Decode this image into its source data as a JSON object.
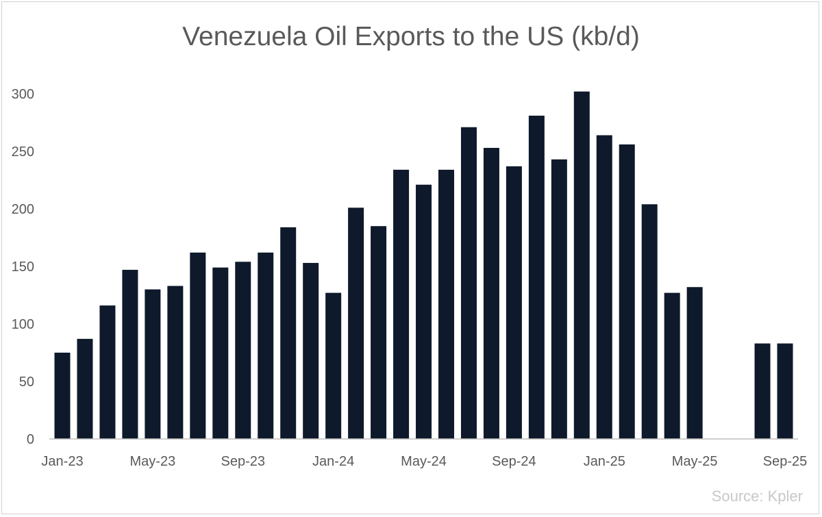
{
  "chart_data": {
    "type": "bar",
    "title": "Venezuela Oil Exports to the US (kb/d)",
    "source": "Source: Kpler",
    "categories": [
      "Jan-23",
      "Feb-23",
      "Mar-23",
      "Apr-23",
      "May-23",
      "Jun-23",
      "Jul-23",
      "Aug-23",
      "Sep-23",
      "Oct-23",
      "Nov-23",
      "Dec-23",
      "Jan-24",
      "Feb-24",
      "Mar-24",
      "Apr-24",
      "May-24",
      "Jun-24",
      "Jul-24",
      "Aug-24",
      "Sep-24",
      "Oct-24",
      "Nov-24",
      "Dec-24",
      "Jan-25",
      "Feb-25",
      "Mar-25",
      "Apr-25",
      "May-25",
      "Jun-25",
      "Jul-25",
      "Aug-25",
      "Sep-25"
    ],
    "values": [
      75,
      87,
      116,
      147,
      130,
      133,
      162,
      149,
      154,
      162,
      184,
      153,
      127,
      201,
      185,
      234,
      221,
      234,
      271,
      253,
      237,
      281,
      243,
      302,
      264,
      256,
      204,
      127,
      132,
      null,
      null,
      83,
      83
    ],
    "x_tick_labels": [
      "Jan-23",
      "May-23",
      "Sep-23",
      "Jan-24",
      "May-24",
      "Sep-24",
      "Jan-25",
      "May-25",
      "Sep-25"
    ],
    "y_ticks": [
      0,
      50,
      100,
      150,
      200,
      250,
      300
    ],
    "ylim": [
      0,
      300
    ],
    "grid": false,
    "bar_color": "#0e1a2b",
    "xlabel": "",
    "ylabel": ""
  }
}
